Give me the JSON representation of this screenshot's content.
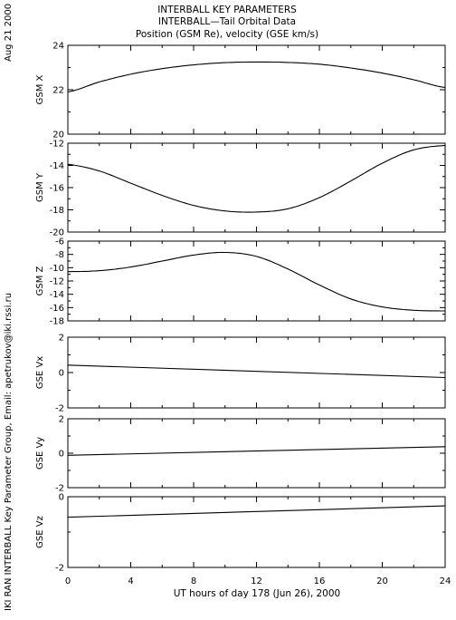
{
  "header": {
    "line1": "INTERBALL KEY PARAMETERS",
    "line2": "INTERBALL—Tail Orbital Data",
    "line3": "Position (GSM Re), velocity (GSE km/s)"
  },
  "side_labels": {
    "date": "Aug 21 2000",
    "credit": "IKI RAN INTERBALL Key Parameter Group, Email: apetrukov@iki.rssi.ru"
  },
  "colors": {
    "line": "#000000",
    "background": "#ffffff"
  },
  "chart_data": {
    "type": "line",
    "x_label": "UT hours of day 178 (Jun 26), 2000",
    "x_range": [
      0,
      24
    ],
    "x_ticks": [
      "0",
      "4",
      "8",
      "12",
      "16",
      "20",
      "24"
    ],
    "panels": [
      {
        "ylabel": "GSM X",
        "ylim": [
          20,
          24
        ],
        "y_ticks": [
          "20",
          "22",
          "24"
        ],
        "x": [
          0,
          2,
          4,
          6,
          8,
          10,
          12,
          14,
          16,
          18,
          20,
          22,
          24
        ],
        "y": [
          21.9,
          22.35,
          22.7,
          22.95,
          23.12,
          23.22,
          23.25,
          23.23,
          23.15,
          22.98,
          22.75,
          22.45,
          22.1
        ]
      },
      {
        "ylabel": "GSM Y",
        "ylim": [
          -20,
          -12
        ],
        "y_ticks": [
          "-20",
          "-18",
          "-16",
          "-14",
          "-12"
        ],
        "x": [
          0,
          2,
          4,
          6,
          8,
          10,
          12,
          14,
          16,
          18,
          20,
          22,
          24
        ],
        "y": [
          -13.9,
          -14.5,
          -15.6,
          -16.7,
          -17.6,
          -18.1,
          -18.2,
          -17.9,
          -16.9,
          -15.4,
          -13.8,
          -12.6,
          -12.2
        ]
      },
      {
        "ylabel": "GSM Z",
        "ylim": [
          -18,
          -6
        ],
        "y_ticks": [
          "-18",
          "-16",
          "-14",
          "-12",
          "-10",
          "-8",
          "-6"
        ],
        "x": [
          0,
          2,
          4,
          6,
          8,
          10,
          12,
          14,
          16,
          18,
          20,
          22,
          24
        ],
        "y": [
          -10.6,
          -10.45,
          -9.9,
          -9.0,
          -8.1,
          -7.7,
          -8.3,
          -10.2,
          -12.6,
          -14.7,
          -15.9,
          -16.4,
          -16.5
        ]
      },
      {
        "ylabel": "GSE Vx",
        "ylim": [
          -2,
          2
        ],
        "y_ticks": [
          "-2",
          "0",
          "2"
        ],
        "x": [
          0,
          24
        ],
        "y": [
          0.42,
          -0.28
        ]
      },
      {
        "ylabel": "GSE Vy",
        "ylim": [
          -2,
          2
        ],
        "y_ticks": [
          "-2",
          "0",
          "2"
        ],
        "x": [
          0,
          24
        ],
        "y": [
          -0.12,
          0.38
        ]
      },
      {
        "ylabel": "GSE Vz",
        "ylim": [
          -2,
          0
        ],
        "y_ticks": [
          "-2",
          "0"
        ],
        "x": [
          0,
          24
        ],
        "y": [
          -0.58,
          -0.26
        ]
      }
    ]
  }
}
